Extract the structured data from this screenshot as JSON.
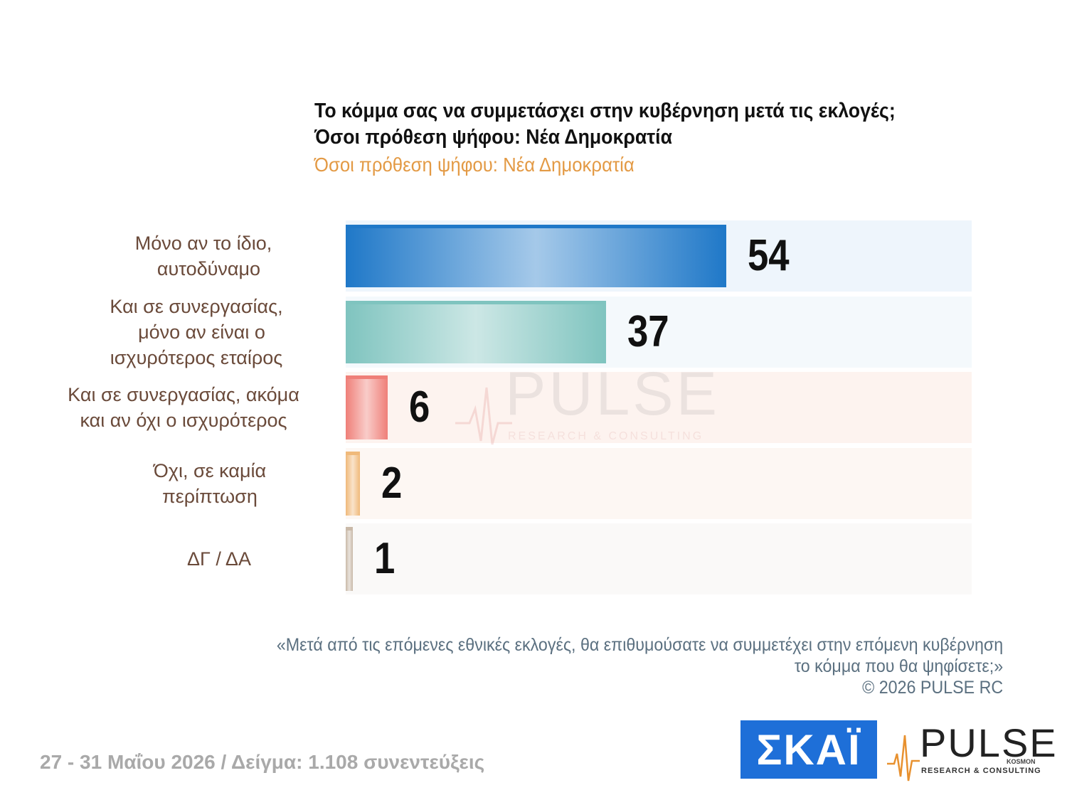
{
  "chart_data": {
    "type": "bar",
    "orientation": "horizontal",
    "title": "Το κόμμα σας να συμμετάσχει στην κυβέρνηση μετά τις εκλογές;",
    "title_line2": "Όσοι πρόθεση ψήφου: Νέα Δημοκρατία",
    "subtitle": "Όσοι πρόθεση ψήφου: Νέα Δημοκρατία",
    "categories": [
      "Μόνο αν το ίδιο,\n  αυτοδύναμο",
      "Και σε συνεργασίας,\n  μόνο αν είναι ο\nισχυρότερος εταίρος",
      "Και σε συνεργασίας, ακόμα\nκαι αν όχι ο ισχυρότερος",
      "Όχι, σε καμία\nπερίπτωση",
      "ΔΓ / ΔΑ"
    ],
    "values": [
      54,
      37,
      6,
      2,
      1
    ],
    "xlim": [
      0,
      100
    ],
    "bar_colors": [
      "#1f78c8",
      "#7fc4bf",
      "#ef7f78",
      "#f0b97a",
      "#c9b9a8"
    ],
    "row_bg_colors": [
      "#eef5fc",
      "#f4f9fc",
      "#fdf3ef",
      "#fdf7f3",
      "#faf9f8"
    ]
  },
  "footnote": {
    "line1": "«Μετά από τις επόμενες εθνικές εκλογές, θα επιθυμούσατε να συμμετέχει στην επόμενη κυβέρνηση",
    "line2": "το κόμμα που θα ψηφίσετε;»",
    "line3": "©  2026  PULSE RC"
  },
  "footer": "27 - 31  Μαΐου 2026  /  Δείγμα:  1.108 συνεντεύξεις",
  "logos": {
    "skai": "ΣΚΑΪ",
    "pulse": "PULSE",
    "pulse_kosmon": "KOSMON",
    "pulse_tagline": "RESEARCH & CONSULTING"
  },
  "colors": {
    "subtitle": "#e39a45",
    "skai_bg": "#1e6fd8"
  }
}
